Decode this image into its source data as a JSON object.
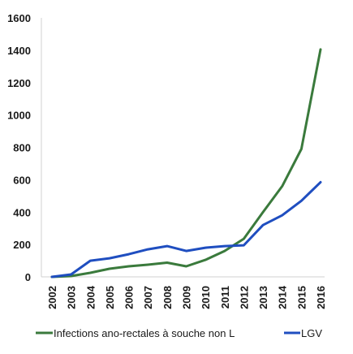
{
  "chart_data": {
    "type": "line",
    "title": "",
    "xlabel": "",
    "ylabel": "",
    "categories": [
      "2002",
      "2003",
      "2004",
      "2005",
      "2006",
      "2007",
      "2008",
      "2009",
      "2010",
      "2011",
      "2012",
      "2013",
      "2014",
      "2015",
      "2016"
    ],
    "ylim": [
      0,
      1600
    ],
    "yticks": [
      0,
      200,
      400,
      600,
      800,
      1000,
      1200,
      1400,
      1600
    ],
    "ytick_labels": [
      "0",
      "200",
      "400",
      "600",
      "800",
      "1000",
      "1200",
      "1400",
      "1600"
    ],
    "grid": false,
    "legend_position": "bottom",
    "series": [
      {
        "name": "Infections ano-rectales à souche non L",
        "color": "#3a7a3c",
        "values": [
          0,
          5,
          25,
          50,
          65,
          75,
          88,
          65,
          105,
          160,
          235,
          400,
          560,
          790,
          1405
        ]
      },
      {
        "name": "LGV",
        "color": "#1f4ec0",
        "values": [
          0,
          15,
          100,
          115,
          140,
          170,
          190,
          160,
          180,
          190,
          195,
          320,
          380,
          470,
          585
        ]
      }
    ]
  }
}
